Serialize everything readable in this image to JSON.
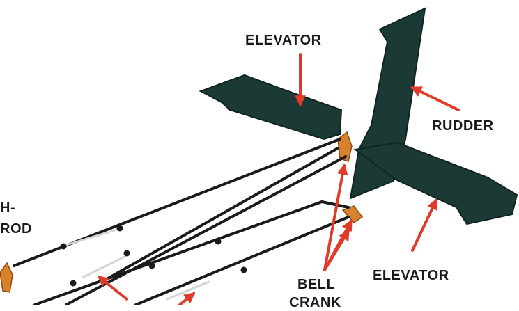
{
  "labels": {
    "elevator_top": "ELEVATOR",
    "rudder": "RUDDER",
    "elevator_bottom": "ELEVATOR",
    "bell": "BELL",
    "crank": "CRANK",
    "push_rod_line1": "H-",
    "push_rod_line2": "ROD"
  },
  "colors": {
    "surface": "#1c3a35",
    "surface_edge": "#0f2421",
    "rod": "#1a1a1a",
    "arrow": "#e03a2a",
    "crank": "#d9822b",
    "rod_highlight": "#cfd6d8"
  }
}
